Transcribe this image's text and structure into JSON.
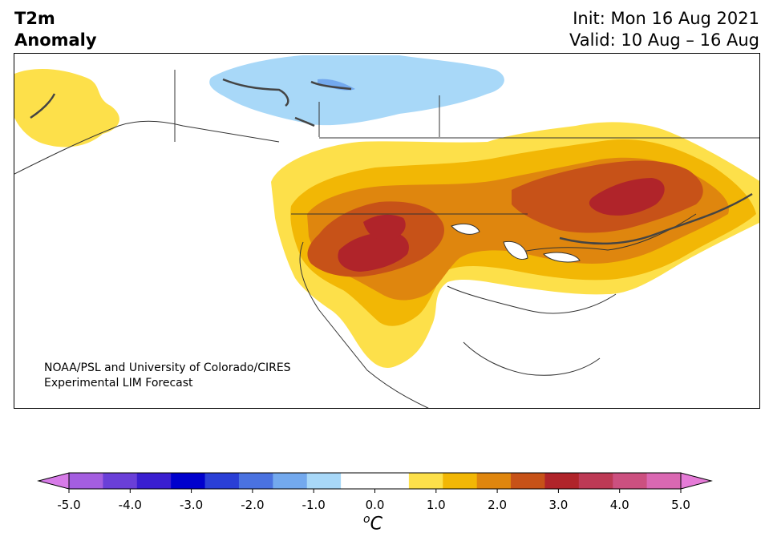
{
  "header": {
    "variable": "T2m",
    "subtitle": "Anomaly",
    "init": "Init: Mon 16 Aug 2021",
    "valid": "Valid: 10 Aug – 16 Aug"
  },
  "credit": {
    "line1": "NOAA/PSL and University of Colorado/CIRES",
    "line2": "Experimental LIM Forecast"
  },
  "colorbar": {
    "unit_superscript": "o",
    "unit_letter": "C",
    "ticks": [
      "-5.0",
      "-4.0",
      "-3.0",
      "-2.0",
      "-1.0",
      "0.0",
      "1.0",
      "2.0",
      "3.0",
      "4.0",
      "5.0"
    ],
    "colors": [
      "#d77be8",
      "#a45ee0",
      "#6a3fd8",
      "#3a1ed0",
      "#0000cd",
      "#2a3fd6",
      "#4a72e0",
      "#73a9ee",
      "#a8d8f8",
      "#ffffff",
      "#ffffff",
      "#fde04a",
      "#f2b705",
      "#df860e",
      "#c75218",
      "#b0242a",
      "#bd3a55",
      "#cc5080",
      "#da68b2",
      "#e57bd7"
    ],
    "under_color": "#d77be8",
    "over_color": "#e57bd7"
  }
}
